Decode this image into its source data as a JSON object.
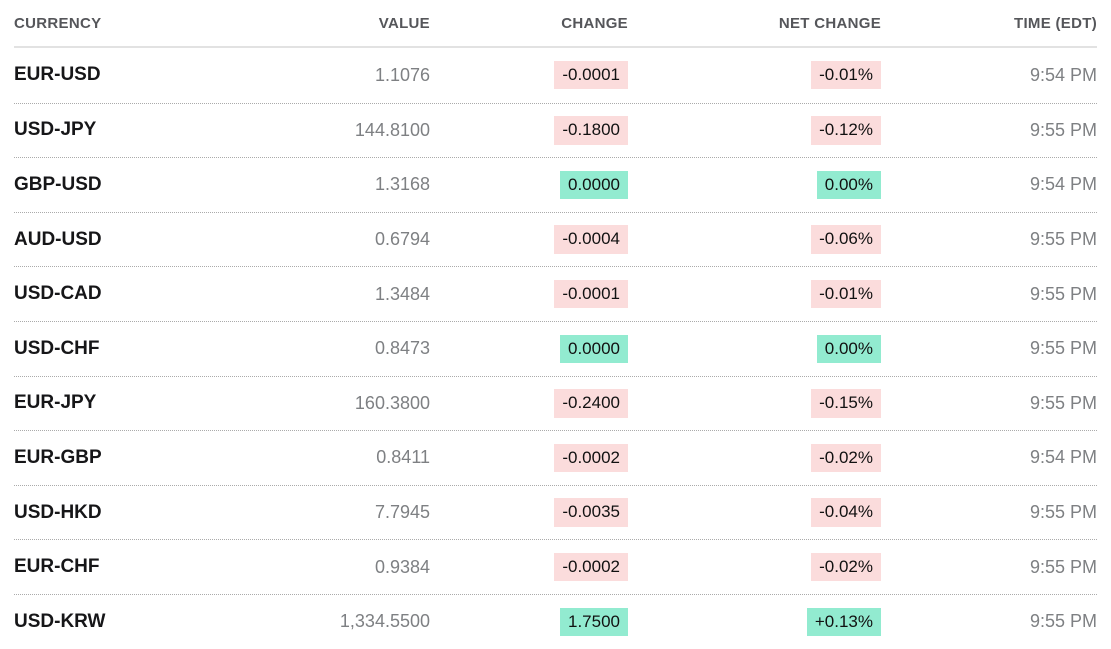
{
  "table": {
    "columns": [
      {
        "label": "CURRENCY"
      },
      {
        "label": "VALUE"
      },
      {
        "label": "CHANGE"
      },
      {
        "label": "NET CHANGE"
      },
      {
        "label": "TIME (EDT)"
      }
    ],
    "colors": {
      "positive_bg": "#92ebd0",
      "negative_bg": "#fbdcdc",
      "header_text": "#55565a",
      "currency_text": "#161618",
      "muted_text": "#7e8083"
    },
    "rows": [
      {
        "currency": "EUR-USD",
        "value": "1.1076",
        "change": "-0.0001",
        "net_change": "-0.01%",
        "time": "9:54 PM",
        "direction": "down"
      },
      {
        "currency": "USD-JPY",
        "value": "144.8100",
        "change": "-0.1800",
        "net_change": "-0.12%",
        "time": "9:55 PM",
        "direction": "down"
      },
      {
        "currency": "GBP-USD",
        "value": "1.3168",
        "change": "0.0000",
        "net_change": "0.00%",
        "time": "9:54 PM",
        "direction": "up"
      },
      {
        "currency": "AUD-USD",
        "value": "0.6794",
        "change": "-0.0004",
        "net_change": "-0.06%",
        "time": "9:55 PM",
        "direction": "down"
      },
      {
        "currency": "USD-CAD",
        "value": "1.3484",
        "change": "-0.0001",
        "net_change": "-0.01%",
        "time": "9:55 PM",
        "direction": "down"
      },
      {
        "currency": "USD-CHF",
        "value": "0.8473",
        "change": "0.0000",
        "net_change": "0.00%",
        "time": "9:55 PM",
        "direction": "up"
      },
      {
        "currency": "EUR-JPY",
        "value": "160.3800",
        "change": "-0.2400",
        "net_change": "-0.15%",
        "time": "9:55 PM",
        "direction": "down"
      },
      {
        "currency": "EUR-GBP",
        "value": "0.8411",
        "change": "-0.0002",
        "net_change": "-0.02%",
        "time": "9:54 PM",
        "direction": "down"
      },
      {
        "currency": "USD-HKD",
        "value": "7.7945",
        "change": "-0.0035",
        "net_change": "-0.04%",
        "time": "9:55 PM",
        "direction": "down"
      },
      {
        "currency": "EUR-CHF",
        "value": "0.9384",
        "change": "-0.0002",
        "net_change": "-0.02%",
        "time": "9:55 PM",
        "direction": "down"
      },
      {
        "currency": "USD-KRW",
        "value": "1,334.5500",
        "change": "1.7500",
        "net_change": "+0.13%",
        "time": "9:55 PM",
        "direction": "up"
      }
    ]
  }
}
